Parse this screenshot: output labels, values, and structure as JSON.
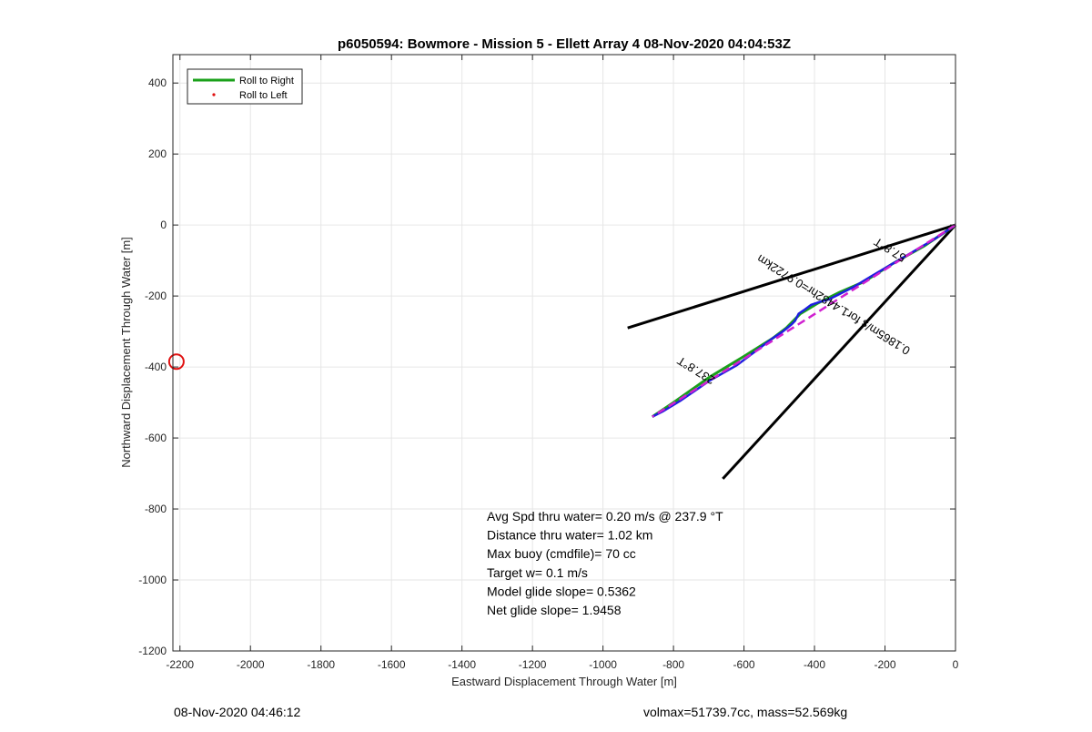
{
  "chart_data": {
    "type": "line",
    "title": "p6050594: Bowmore - Mission 5 - Ellett Array 4 08-Nov-2020 04:04:53Z",
    "xlabel": "Eastward Displacement Through Water [m]",
    "ylabel": "Northward Displacement Through Water [m]",
    "xlim": [
      -2220,
      0
    ],
    "ylim": [
      -1200,
      480
    ],
    "xticks": [
      -2200,
      -2000,
      -1800,
      -1600,
      -1400,
      -1200,
      -1000,
      -800,
      -600,
      -400,
      -200,
      0
    ],
    "yticks": [
      400,
      200,
      0,
      -200,
      -400,
      -600,
      -800,
      -1000,
      -1200
    ],
    "grid": true,
    "legend": {
      "position": "top-left",
      "entries": [
        {
          "label": "Roll to Right",
          "color": "#1aa01a",
          "style": "line"
        },
        {
          "label": "Roll to Left",
          "color": "#e01010",
          "style": "dot"
        }
      ]
    },
    "series": [
      {
        "name": "Roll to Right",
        "color": "#1aa01a",
        "x": [
          0,
          -90,
          -180,
          -260,
          -330,
          -390,
          -440,
          -480,
          -520,
          -600,
          -700,
          -800,
          -860
        ],
        "y": [
          0,
          -60,
          -110,
          -160,
          -190,
          -220,
          -250,
          -290,
          -320,
          -370,
          -430,
          -500,
          -540
        ]
      }
    ],
    "track": {
      "color": "#1e1ee0",
      "x": [
        0,
        -60,
        -120,
        -180,
        -240,
        -290,
        -320,
        -340,
        -360,
        -380,
        -410,
        -430,
        -445,
        -455,
        -465,
        -490,
        -520,
        -560,
        -620,
        -700,
        -780,
        -830,
        -860
      ],
      "y": [
        0,
        -40,
        -75,
        -110,
        -145,
        -175,
        -190,
        -200,
        -210,
        -215,
        -225,
        -240,
        -250,
        -270,
        -280,
        -300,
        -320,
        -350,
        -395,
        -440,
        -495,
        -525,
        -540
      ]
    },
    "dashed_line": {
      "color": "#d020d0",
      "x": [
        0,
        -860
      ],
      "y": [
        0,
        -540
      ]
    },
    "black_lines": [
      {
        "x": [
          0,
          -930
        ],
        "y": [
          0,
          -290
        ]
      },
      {
        "x": [
          0,
          -660
        ],
        "y": [
          0,
          -715
        ]
      }
    ],
    "red_circle": {
      "x": -2210,
      "y": -385,
      "color": "#e01010"
    },
    "line_annotations": [
      {
        "text": "237.8°T",
        "x": -730,
        "y": -400,
        "angle_deg": 212
      },
      {
        "text": "0.1865m/s for1.4482hr=0.9722km",
        "x": -340,
        "y": -215,
        "angle_deg": 212
      },
      {
        "text": "57.8°T",
        "x": -180,
        "y": -60,
        "angle_deg": 212
      }
    ],
    "stats_lines": [
      "Avg Spd thru water=  0.20 m/s @ 237.9 °T",
      "Distance thru water=  1.02 km",
      "Max buoy (cmdfile)= 70 cc",
      "Target w= 0.1 m/s",
      "Model glide slope= 0.5362",
      "Net glide slope= 1.9458"
    ]
  },
  "footer": {
    "left": "08-Nov-2020 04:46:12",
    "right": "volmax=51739.7cc, mass=52.569kg"
  }
}
